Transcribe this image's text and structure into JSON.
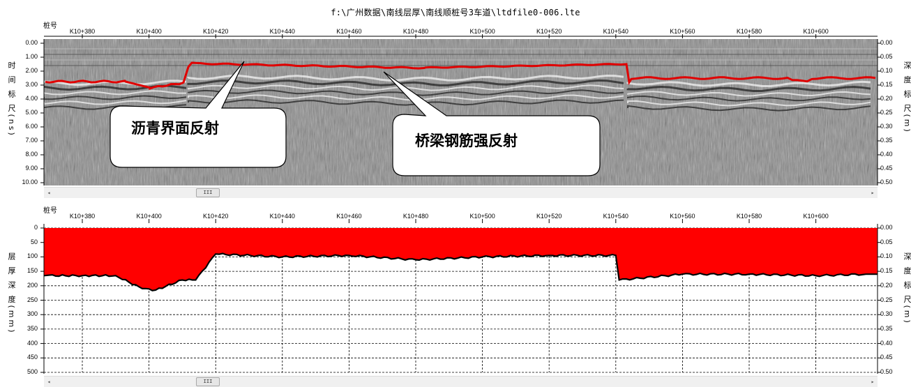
{
  "window": {
    "title": "f:\\广州数据\\南线层厚\\南线顺桩号3车道\\ltdfile0-006.lte"
  },
  "top_panel": {
    "station_caption": "桩号",
    "left_axis_label": "时 间 标 尺(ns)",
    "right_axis_label": "深 度 标 尺(m)",
    "stations": [
      "K10+380",
      "K10+400",
      "K10+420",
      "K10+440",
      "K10+460",
      "K10+480",
      "K10+500",
      "K10+520",
      "K10+540",
      "K10+560",
      "K10+580",
      "K10+600"
    ],
    "time_ticks": [
      "0.00",
      "1.00",
      "2.00",
      "3.00",
      "4.00",
      "5.00",
      "6.00",
      "7.00",
      "8.00",
      "9.00",
      "10.00"
    ],
    "depth_ticks": [
      "0.00",
      "0.05",
      "0.10",
      "0.15",
      "0.20",
      "0.25",
      "0.30",
      "0.35",
      "0.40",
      "0.45",
      "0.50"
    ],
    "callouts": [
      {
        "text": "沥青界面反射"
      },
      {
        "text": "桥梁钢筋强反射"
      }
    ],
    "colors": {
      "interface_line": "#e00000",
      "radargram_bg": "#8c8c8c"
    }
  },
  "bottom_panel": {
    "station_caption": "桩号",
    "left_axis_label": "层 厚 深 度(mm)",
    "right_axis_label": "深 度 标 尺(m)",
    "stations": [
      "K10+380",
      "K10+400",
      "K10+420",
      "K10+440",
      "K10+460",
      "K10+480",
      "K10+500",
      "K10+520",
      "K10+540",
      "K10+560",
      "K10+580",
      "K10+600"
    ],
    "thickness_ticks": [
      "0",
      "50",
      "100",
      "150",
      "200",
      "250",
      "300",
      "350",
      "400",
      "450",
      "500"
    ],
    "depth_ticks": [
      "0.00",
      "0.05",
      "0.10",
      "0.15",
      "0.20",
      "0.25",
      "0.30",
      "0.35",
      "0.40",
      "0.45",
      "0.50"
    ],
    "colors": {
      "layer_fill": "#ff0000",
      "grid": "#000000"
    }
  },
  "scrollbars": {
    "thumb_glyph": "III",
    "left_arrow": "◂",
    "right_arrow": "▸"
  },
  "chart_data": {
    "type": "area",
    "title": "",
    "xlabel": "桩号",
    "ylabel": "层厚深度(mm)",
    "ylim": [
      0,
      500
    ],
    "x": [
      "K10+370",
      "K10+380",
      "K10+390",
      "K10+398",
      "K10+402",
      "K10+410",
      "K10+414",
      "K10+420",
      "K10+440",
      "K10+460",
      "K10+480",
      "K10+500",
      "K10+520",
      "K10+540",
      "K10+541",
      "K10+560",
      "K10+580",
      "K10+600",
      "K10+615"
    ],
    "series": [
      {
        "values": [
          165,
          165,
          165,
          210,
          215,
          180,
          180,
          90,
          100,
          95,
          110,
          100,
          95,
          95,
          180,
          160,
          160,
          165,
          160
        ]
      }
    ]
  }
}
